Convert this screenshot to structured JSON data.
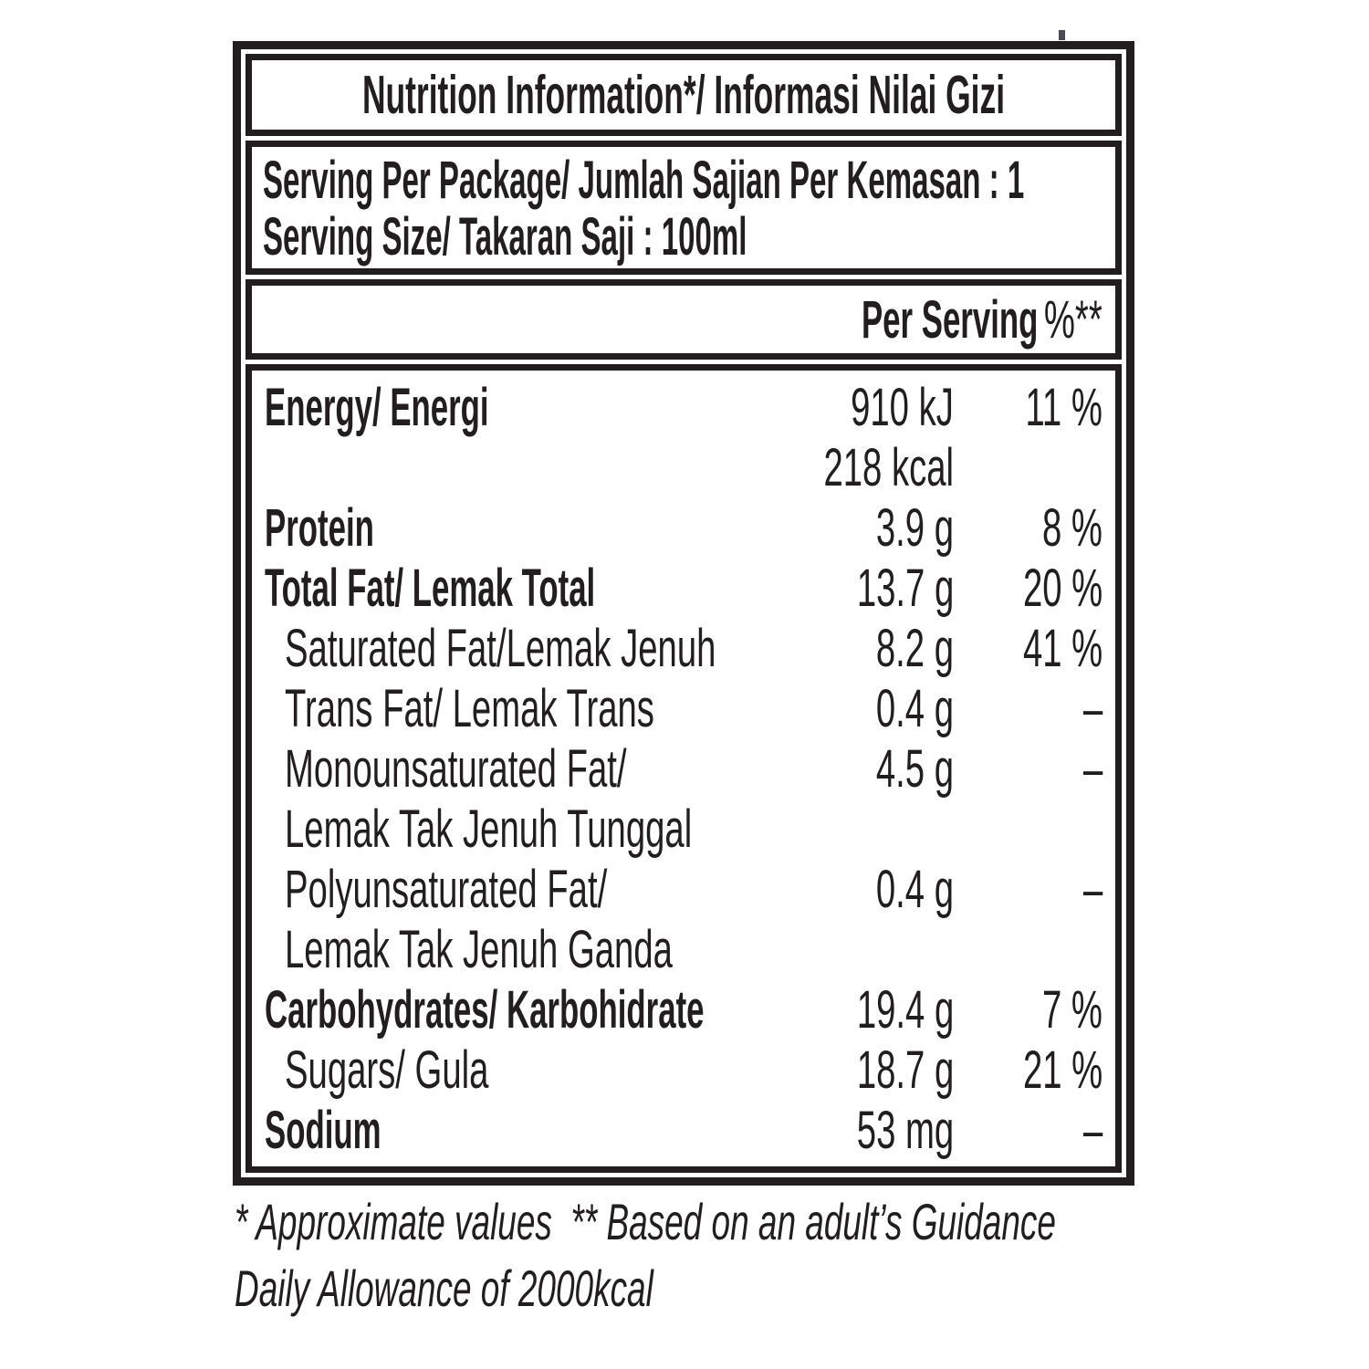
{
  "document": {
    "title": "Nutrition Information*/ Informasi Nilai Gizi",
    "serving_info": {
      "lines": [
        "Serving Per Package/ Jumlah Sajian Per Kemasan : 1",
        "Serving Size/ Takaran Saji : 100ml"
      ]
    },
    "columns": {
      "amount": "Per Serving",
      "percent_daily": "%**"
    },
    "nutrients": [
      {
        "label": "Energy/ Energi",
        "bold": true,
        "indent": false,
        "amount": "910 kJ",
        "percent": "11 %"
      },
      {
        "label": "",
        "bold": false,
        "indent": false,
        "amount": "218 kcal",
        "percent": ""
      },
      {
        "label": "Protein",
        "bold": true,
        "indent": false,
        "amount": "3.9 g",
        "percent": "8 %"
      },
      {
        "label": "Total Fat/ Lemak Total",
        "bold": true,
        "indent": false,
        "amount": "13.7 g",
        "percent": "20 %"
      },
      {
        "label": "Saturated Fat/Lemak Jenuh",
        "bold": false,
        "indent": true,
        "amount": "8.2 g",
        "percent": "41 %"
      },
      {
        "label": "Trans Fat/ Lemak Trans",
        "bold": false,
        "indent": true,
        "amount": "0.4 g",
        "percent": "–"
      },
      {
        "label": "Monounsaturated Fat/",
        "bold": false,
        "indent": true,
        "amount": "4.5 g",
        "percent": "–"
      },
      {
        "label": "Lemak Tak Jenuh Tunggal",
        "bold": false,
        "indent": true,
        "amount": "",
        "percent": ""
      },
      {
        "label": "Polyunsaturated Fat/",
        "bold": false,
        "indent": true,
        "amount": "0.4 g",
        "percent": "–"
      },
      {
        "label": "Lemak Tak Jenuh Ganda",
        "bold": false,
        "indent": true,
        "amount": "",
        "percent": ""
      },
      {
        "label": "Carbohydrates/ Karbohidrate",
        "bold": true,
        "indent": false,
        "amount": "19.4 g",
        "percent": "7 %"
      },
      {
        "label": "Sugars/ Gula",
        "bold": false,
        "indent": true,
        "amount": "18.7 g",
        "percent": "21 %"
      },
      {
        "label": "Sodium",
        "bold": true,
        "indent": false,
        "amount": "53 mg",
        "percent": "–"
      }
    ],
    "footnotes": [
      "* Approximate values  ** Based on an adult’s Guidance",
      "Daily Allowance of 2000kcal"
    ]
  },
  "colors": {
    "text": "#221e1f",
    "border": "#221e1f",
    "background": "#ffffff"
  }
}
